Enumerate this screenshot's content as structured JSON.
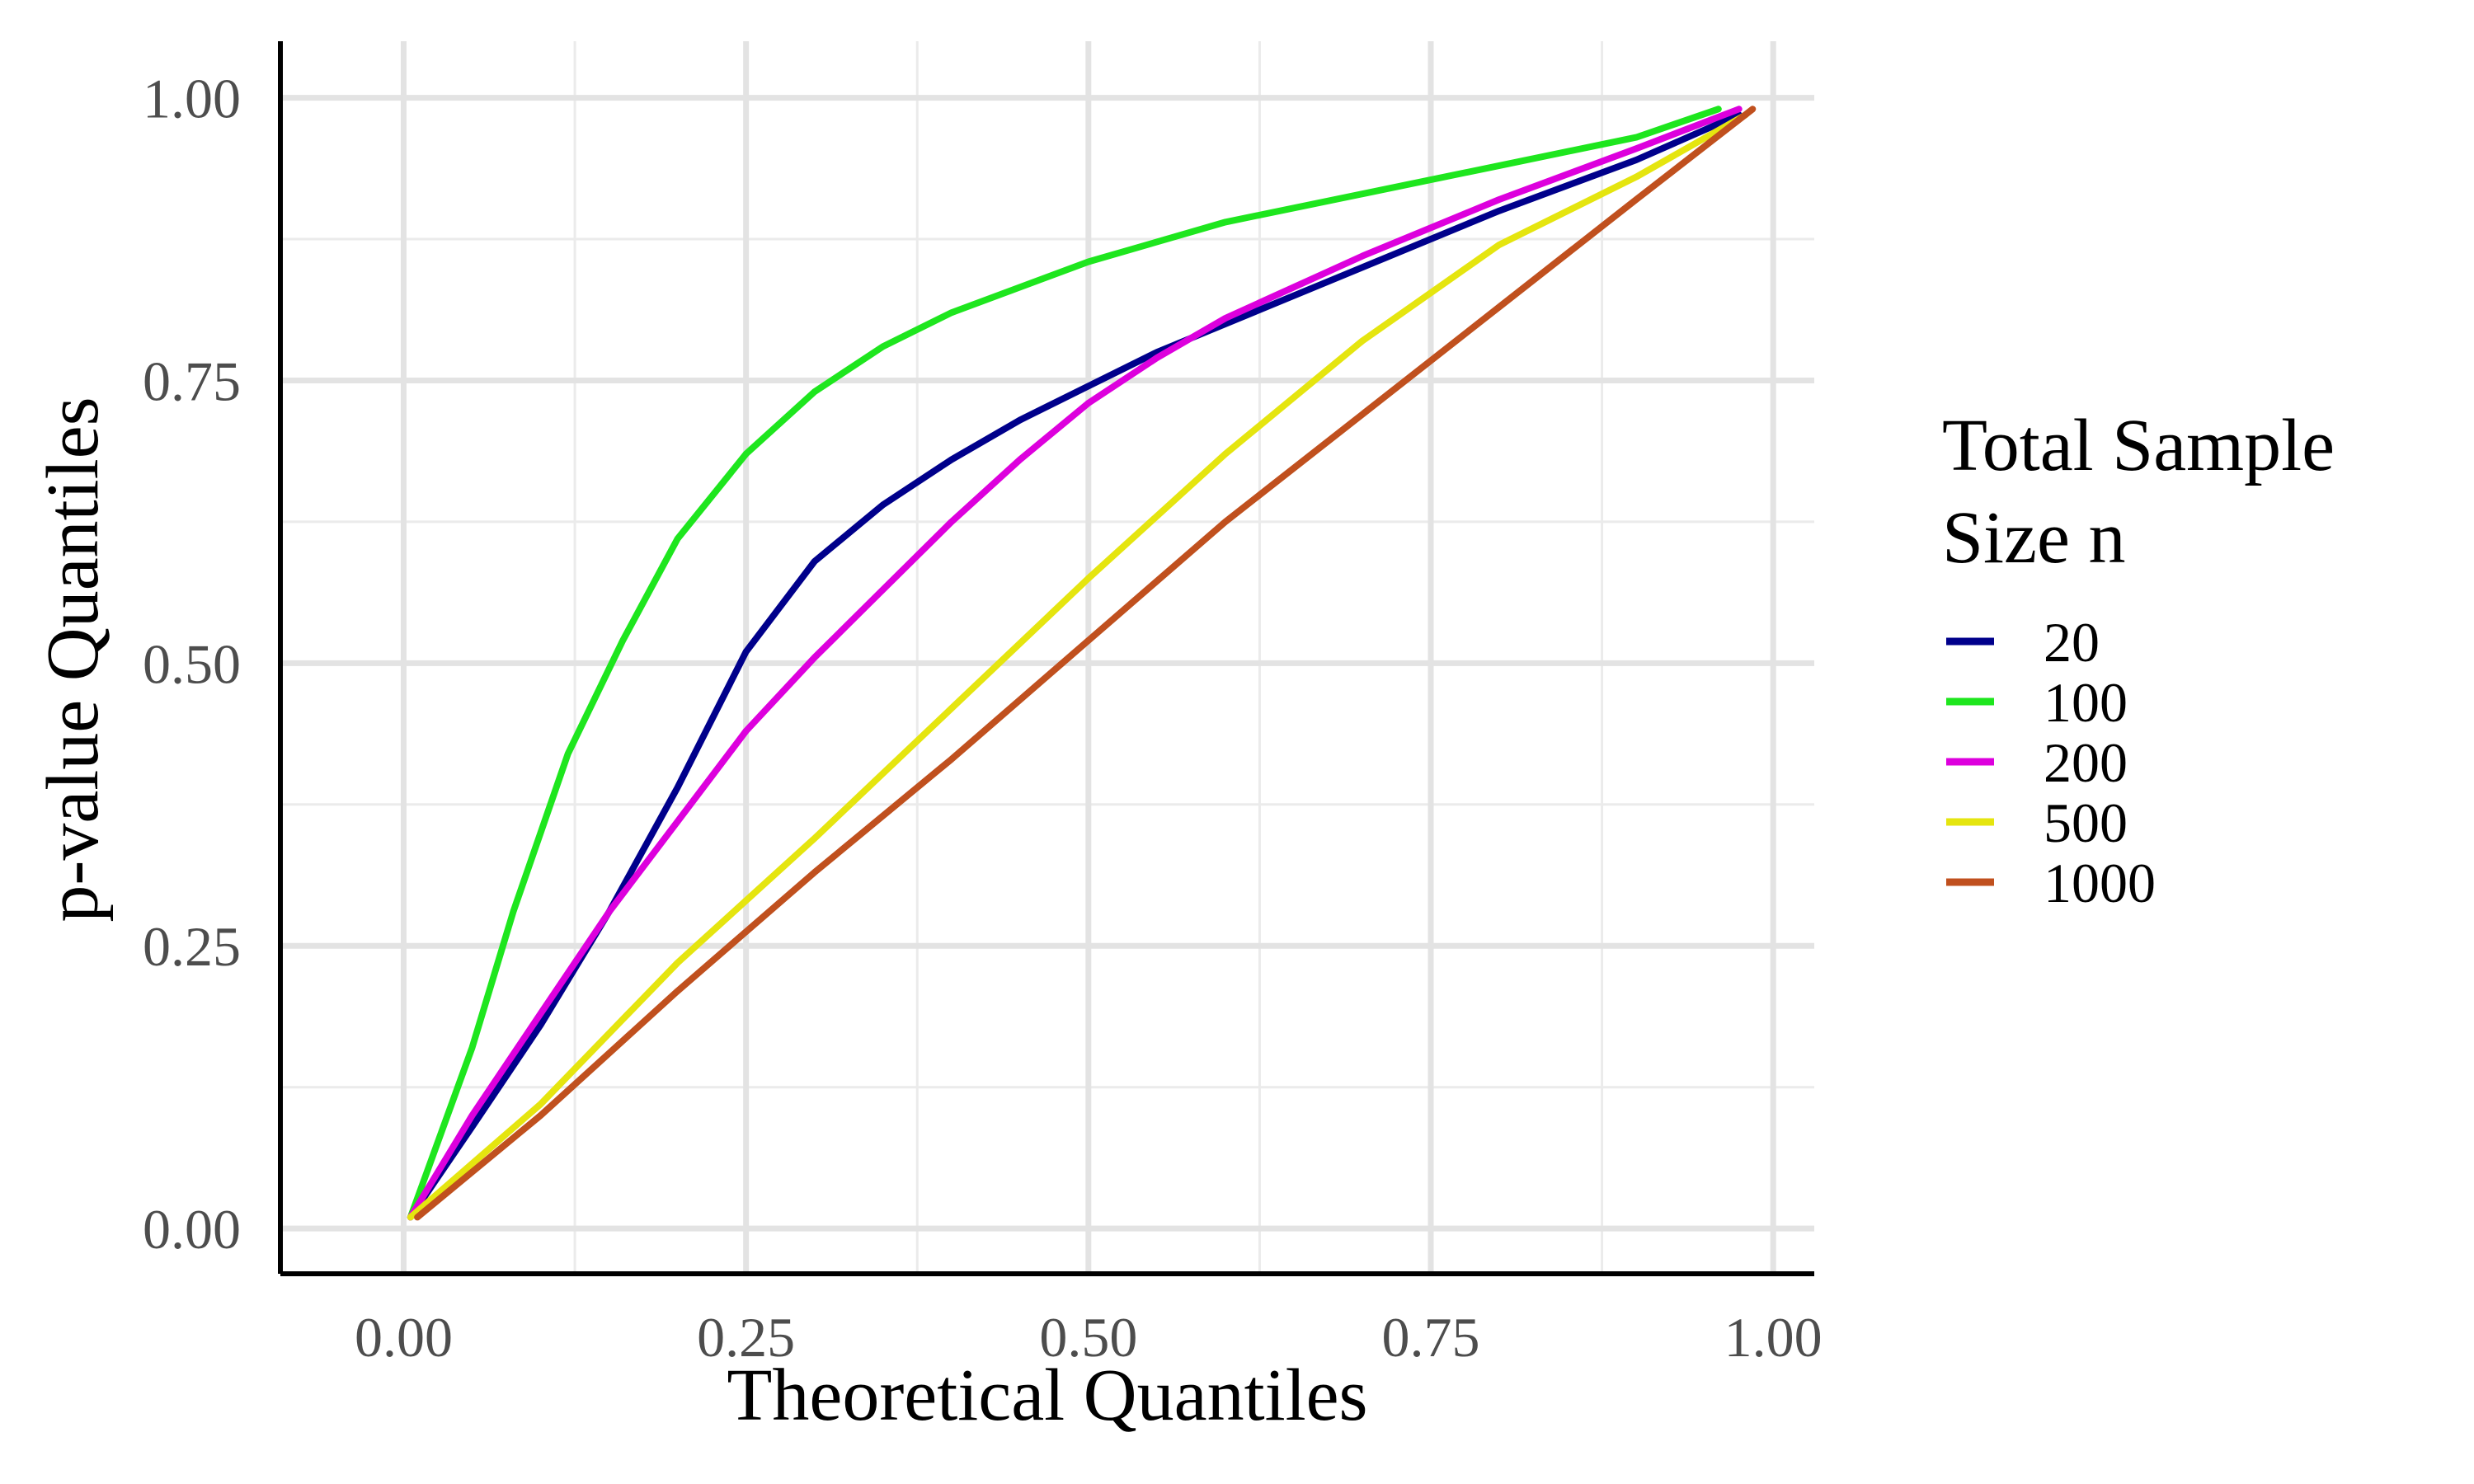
{
  "chart_data": {
    "type": "line",
    "xlabel": "Theoretical Quantiles",
    "ylabel": "p-value Quantiles",
    "xlim": [
      -0.09,
      1.03
    ],
    "ylim": [
      -0.04,
      1.05
    ],
    "x_ticks": [
      "0.00",
      "0.25",
      "0.50",
      "0.75",
      "1.00"
    ],
    "y_ticks": [
      "0.00",
      "0.25",
      "0.50",
      "0.75",
      "1.00"
    ],
    "grid": true,
    "legend": {
      "title_line1": "Total Sample",
      "title_line2": "Size n",
      "position": "right"
    },
    "series": [
      {
        "name": "20",
        "color": "#00008b",
        "points": [
          [
            0.005,
            0.01
          ],
          [
            0.05,
            0.09
          ],
          [
            0.1,
            0.18
          ],
          [
            0.15,
            0.28
          ],
          [
            0.2,
            0.39
          ],
          [
            0.25,
            0.51
          ],
          [
            0.3,
            0.59
          ],
          [
            0.35,
            0.64
          ],
          [
            0.4,
            0.68
          ],
          [
            0.45,
            0.715
          ],
          [
            0.5,
            0.745
          ],
          [
            0.55,
            0.775
          ],
          [
            0.6,
            0.8
          ],
          [
            0.7,
            0.85
          ],
          [
            0.8,
            0.9
          ],
          [
            0.9,
            0.945
          ],
          [
            0.975,
            0.985
          ]
        ]
      },
      {
        "name": "100",
        "color": "#1ee61e",
        "points": [
          [
            0.005,
            0.01
          ],
          [
            0.05,
            0.16
          ],
          [
            0.08,
            0.28
          ],
          [
            0.12,
            0.42
          ],
          [
            0.16,
            0.52
          ],
          [
            0.2,
            0.61
          ],
          [
            0.25,
            0.685
          ],
          [
            0.3,
            0.74
          ],
          [
            0.35,
            0.78
          ],
          [
            0.4,
            0.81
          ],
          [
            0.5,
            0.855
          ],
          [
            0.6,
            0.89
          ],
          [
            0.7,
            0.915
          ],
          [
            0.8,
            0.94
          ],
          [
            0.9,
            0.965
          ],
          [
            0.96,
            0.99
          ]
        ]
      },
      {
        "name": "200",
        "color": "#dd00dd",
        "points": [
          [
            0.005,
            0.01
          ],
          [
            0.05,
            0.1
          ],
          [
            0.1,
            0.19
          ],
          [
            0.15,
            0.28
          ],
          [
            0.2,
            0.36
          ],
          [
            0.25,
            0.44
          ],
          [
            0.3,
            0.505
          ],
          [
            0.35,
            0.565
          ],
          [
            0.4,
            0.625
          ],
          [
            0.45,
            0.68
          ],
          [
            0.5,
            0.73
          ],
          [
            0.55,
            0.77
          ],
          [
            0.6,
            0.805
          ],
          [
            0.7,
            0.86
          ],
          [
            0.8,
            0.91
          ],
          [
            0.9,
            0.955
          ],
          [
            0.975,
            0.99
          ]
        ]
      },
      {
        "name": "500",
        "color": "#e5e50f",
        "points": [
          [
            0.005,
            0.01
          ],
          [
            0.1,
            0.11
          ],
          [
            0.2,
            0.235
          ],
          [
            0.3,
            0.345
          ],
          [
            0.4,
            0.46
          ],
          [
            0.5,
            0.575
          ],
          [
            0.6,
            0.685
          ],
          [
            0.7,
            0.785
          ],
          [
            0.8,
            0.87
          ],
          [
            0.9,
            0.93
          ],
          [
            0.98,
            0.985
          ]
        ]
      },
      {
        "name": "1000",
        "color": "#c0501e",
        "points": [
          [
            0.01,
            0.01
          ],
          [
            0.1,
            0.1
          ],
          [
            0.2,
            0.21
          ],
          [
            0.3,
            0.315
          ],
          [
            0.4,
            0.415
          ],
          [
            0.5,
            0.52
          ],
          [
            0.6,
            0.625
          ],
          [
            0.7,
            0.72
          ],
          [
            0.8,
            0.815
          ],
          [
            0.9,
            0.91
          ],
          [
            0.985,
            0.99
          ]
        ]
      }
    ]
  }
}
